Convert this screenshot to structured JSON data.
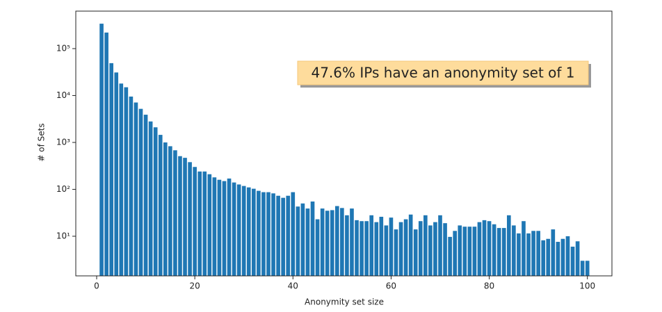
{
  "chart_data": {
    "type": "bar",
    "log_y": true,
    "color": "#1f77b4",
    "xlabel": "Anonymity set size",
    "ylabel": "# of Sets",
    "annotation": "47.6% IPs have an anonymity set of 1",
    "x": [
      1,
      2,
      3,
      4,
      5,
      6,
      7,
      8,
      9,
      10,
      11,
      12,
      13,
      14,
      15,
      16,
      17,
      18,
      19,
      20,
      21,
      22,
      23,
      24,
      25,
      26,
      27,
      28,
      29,
      30,
      31,
      32,
      33,
      34,
      35,
      36,
      37,
      38,
      39,
      40,
      41,
      42,
      43,
      44,
      45,
      46,
      47,
      48,
      49,
      50,
      51,
      52,
      53,
      54,
      55,
      56,
      57,
      58,
      59,
      60,
      61,
      62,
      63,
      64,
      65,
      66,
      67,
      68,
      69,
      70,
      71,
      72,
      73,
      74,
      75,
      76,
      77,
      78,
      79,
      80,
      81,
      82,
      83,
      84,
      85,
      86,
      87,
      88,
      89,
      90,
      91,
      92,
      93,
      94,
      95,
      96,
      97,
      98,
      99,
      100
    ],
    "values": [
      340000,
      220000,
      49000,
      31000,
      18000,
      15000,
      9500,
      7100,
      5200,
      3900,
      2800,
      2100,
      1450,
      1000,
      830,
      680,
      510,
      470,
      380,
      300,
      240,
      240,
      210,
      180,
      160,
      150,
      170,
      140,
      127,
      118,
      110,
      103,
      93,
      87,
      87,
      82,
      73,
      66,
      73,
      87,
      43,
      50,
      39,
      55,
      23,
      39,
      35,
      36,
      44,
      40,
      28,
      39,
      22,
      21,
      21,
      28,
      20,
      26,
      17,
      25,
      14,
      20,
      23,
      29,
      14,
      21,
      28,
      17,
      20,
      28,
      19,
      9.7,
      13,
      17,
      16,
      16,
      16,
      20,
      22,
      21,
      18,
      15,
      15,
      28,
      17,
      11.5,
      21,
      11.5,
      13,
      13,
      8.2,
      8.8,
      14,
      7.6,
      8.8,
      10,
      6,
      7.8,
      3,
      3
    ],
    "xlim": [
      -4.25,
      105
    ],
    "ylim": [
      1.43,
      630000
    ],
    "xticks": [
      0,
      20,
      40,
      60,
      80,
      100
    ],
    "yticks": [
      {
        "value": 10,
        "label": "10¹"
      },
      {
        "value": 100,
        "label": "10²"
      },
      {
        "value": 1000,
        "label": "10³"
      },
      {
        "value": 10000,
        "label": "10⁴"
      },
      {
        "value": 100000,
        "label": "10⁵"
      }
    ]
  }
}
